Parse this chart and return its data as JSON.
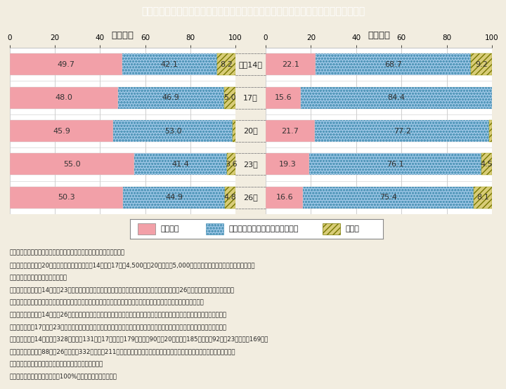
{
  "title": "Ｉ－７－４図　配偶者からの被害経験のある者のうち誰かに相談した者の割合の推移",
  "title_bg": "#29ABCC",
  "title_color": "#FFFFFF",
  "bg_color": "#F2EDE0",
  "chart_bg": "#FFFFFF",
  "years": [
    "平成14年",
    "17年",
    "20年",
    "23年",
    "26年"
  ],
  "female_data": [
    [
      49.7,
      42.1,
      8.2
    ],
    [
      48.0,
      46.9,
      5.0
    ],
    [
      45.9,
      53.0,
      1.1
    ],
    [
      55.0,
      41.4,
      3.6
    ],
    [
      50.3,
      44.9,
      4.8
    ]
  ],
  "male_data": [
    [
      22.1,
      68.7,
      9.2
    ],
    [
      15.6,
      84.4,
      0.0
    ],
    [
      21.7,
      77.2,
      1.1
    ],
    [
      19.3,
      76.1,
      4.5
    ],
    [
      16.6,
      75.4,
      8.1
    ]
  ],
  "color_pink": "#F2A0A8",
  "color_blue": "#A0C8E8",
  "color_yellow": "#D8CC78",
  "xlabel_female": "＜女性＞",
  "xlabel_male": "＜男性＞",
  "axis_ticks": [
    0,
    20,
    40,
    60,
    80,
    100
  ],
  "legend_labels": [
    "相談した",
    "どこ（だれ）にも相談しなかった",
    "無回答"
  ],
  "notes": [
    "（備考）　１．内閣府「男女間における暴力に関する調査」より作成。",
    "　　　　　２．全国20歳以上の男女を対象（平成14年及び17年は4,500人，20年以降は5,000人）とした無作為抽出によるアンケート",
    "　　　　　　　調査の結果による。",
    "　　　　　３．平成14年から23年は「身体的暴行」，「心理的攻撃」及び「性的強要」のいずれか，26年は「身体的暴行」，「心理",
    "　　　　　　　的攻撃」，「経済的圧迫」及び「性的強要」のいずれかの被害経験について誰かに相談した経験を調査。",
    "　　　　　４．平成14年及び26年は，期間を区切らずに，配偶者から何らかの被害を受けたことがあった者について集計。また，",
    "　　　　　　　17年から23年は，過去５年以内に配偶者から何らかの被害を受けたことがあった者について集計。集計対象者は，",
    "　　　　　　　14年が女性328人，男性131人，17年が女性179人，男性90人，20年が女性185人，男性92人，23年が女性169人，",
    "　　　　　　　男性88人，26年が女性332人，男性211人。前項「３」と合わせて，調査年により調査方法，設問内容等が異なる",
    "　　　　　　　ことから，時系列比較には注意を要する。",
    "　　　　　５．四捨五入により100%とならない場合がある。"
  ]
}
